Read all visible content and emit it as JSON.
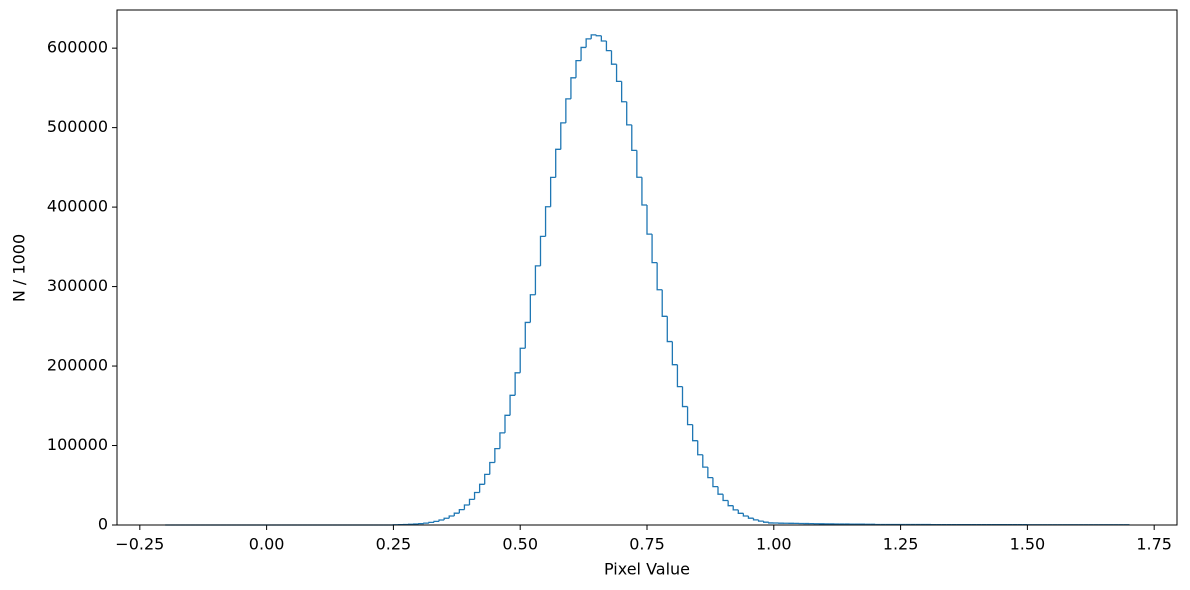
{
  "chart_data": {
    "type": "histogram",
    "xlabel": "Pixel Value",
    "ylabel": "N / 1000",
    "color": "#1f77b4",
    "xlim": [
      -0.295,
      1.795
    ],
    "ylim": [
      0,
      648000
    ],
    "xticks": [
      {
        "value": -0.25,
        "label": "−0.25"
      },
      {
        "value": 0,
        "label": "0.00"
      },
      {
        "value": 0.25,
        "label": "0.25"
      },
      {
        "value": 0.5,
        "label": "0.50"
      },
      {
        "value": 0.75,
        "label": "0.75"
      },
      {
        "value": 1,
        "label": "1.00"
      },
      {
        "value": 1.25,
        "label": "1.25"
      },
      {
        "value": 1.5,
        "label": "1.50"
      },
      {
        "value": 1.75,
        "label": "1.75"
      }
    ],
    "yticks": [
      0,
      100000,
      200000,
      300000,
      400000,
      500000,
      600000
    ],
    "bins": [
      -0.2,
      -0.19,
      -0.18,
      -0.17,
      -0.16,
      -0.15,
      -0.14,
      -0.13,
      -0.12,
      -0.11,
      -0.1,
      -0.09,
      -0.08,
      -0.07,
      -0.06,
      -0.05,
      -0.04,
      -0.03,
      -0.02,
      -0.01,
      0,
      0.01,
      0.02,
      0.03,
      0.04,
      0.05,
      0.06,
      0.07,
      0.08,
      0.09,
      0.1,
      0.11,
      0.12,
      0.13,
      0.14,
      0.15,
      0.16,
      0.17,
      0.18,
      0.19,
      0.2,
      0.21,
      0.22,
      0.23,
      0.24,
      0.25,
      0.26,
      0.27,
      0.28,
      0.29,
      0.3,
      0.31,
      0.32,
      0.33,
      0.34,
      0.35,
      0.36,
      0.37,
      0.38,
      0.39,
      0.4,
      0.41,
      0.42,
      0.43,
      0.44,
      0.45,
      0.46,
      0.47,
      0.48,
      0.49,
      0.5,
      0.51,
      0.52,
      0.53,
      0.54,
      0.55,
      0.56,
      0.57,
      0.58,
      0.59,
      0.6,
      0.61,
      0.62,
      0.63,
      0.64,
      0.65,
      0.66,
      0.67,
      0.68,
      0.69,
      0.7,
      0.71,
      0.72,
      0.73,
      0.74,
      0.75,
      0.76,
      0.77,
      0.78,
      0.79,
      0.8,
      0.81,
      0.82,
      0.83,
      0.84,
      0.85,
      0.86,
      0.87,
      0.88,
      0.89,
      0.9,
      0.91,
      0.92,
      0.93,
      0.94,
      0.95,
      0.96,
      0.97,
      0.98,
      0.99,
      1,
      1.01,
      1.02,
      1.03,
      1.04,
      1.05,
      1.06,
      1.07,
      1.08,
      1.09,
      1.1,
      1.11,
      1.12,
      1.13,
      1.14,
      1.15,
      1.16,
      1.17,
      1.18,
      1.19,
      1.2,
      1.21,
      1.22,
      1.23,
      1.24,
      1.25,
      1.26,
      1.27,
      1.28,
      1.29,
      1.3,
      1.31,
      1.32,
      1.33,
      1.34,
      1.35,
      1.36,
      1.37,
      1.38,
      1.39,
      1.4,
      1.41,
      1.42,
      1.43,
      1.44,
      1.45,
      1.46,
      1.47,
      1.48,
      1.49,
      1.5,
      1.51,
      1.52,
      1.53,
      1.54,
      1.55,
      1.56,
      1.57,
      1.58,
      1.59,
      1.6,
      1.61,
      1.62,
      1.63,
      1.64,
      1.65,
      1.66,
      1.67,
      1.68,
      1.69,
      1.7
    ],
    "values": [
      0,
      0,
      0,
      0,
      0,
      0,
      0,
      0,
      0,
      0,
      0,
      0,
      0,
      0,
      0,
      0,
      0,
      0,
      0,
      0,
      0,
      0,
      0,
      0,
      0,
      0,
      0,
      0,
      0,
      0,
      0,
      0,
      0,
      0,
      0,
      0,
      0,
      0,
      0,
      0,
      0,
      0,
      0,
      0,
      0,
      273,
      404,
      586,
      848,
      1215,
      1723,
      2400,
      3340,
      4596,
      6264,
      8453,
      11290,
      14870,
      19380,
      25170,
      32270,
      40910,
      51210,
      63740,
      78670,
      96070,
      115900,
      138000,
      163200,
      191500,
      222400,
      254900,
      289700,
      326000,
      363200,
      400400,
      437400,
      472700,
      506000,
      536200,
      562700,
      584300,
      600900,
      611700,
      616700,
      615600,
      609000,
      596900,
      579800,
      558200,
      532600,
      503500,
      471400,
      437600,
      402600,
      366000,
      330100,
      296000,
      262600,
      230800,
      201700,
      174100,
      149000,
      126300,
      106100,
      88400,
      72800,
      59600,
      48300,
      38760,
      30850,
      24320,
      19000,
      14720,
      11300,
      8590,
      6470,
      4830,
      3570,
      2620,
      2500,
      2300,
      2200,
      2100,
      2000,
      1900,
      1800,
      1700,
      1600,
      1500,
      1400,
      1340,
      1290,
      1230,
      1170,
      1110,
      1060,
      1000,
      950,
      900,
      600,
      592,
      584,
      576,
      568,
      560,
      552,
      544,
      536,
      528,
      520,
      512,
      504,
      496,
      488,
      480,
      472,
      464,
      456,
      448,
      440,
      432,
      424,
      416,
      408,
      400,
      392,
      384,
      376,
      368,
      360,
      352,
      344,
      336,
      328,
      320,
      312,
      304,
      296,
      288,
      280,
      272,
      264,
      256,
      248,
      240,
      232,
      224,
      216,
      208
    ]
  }
}
